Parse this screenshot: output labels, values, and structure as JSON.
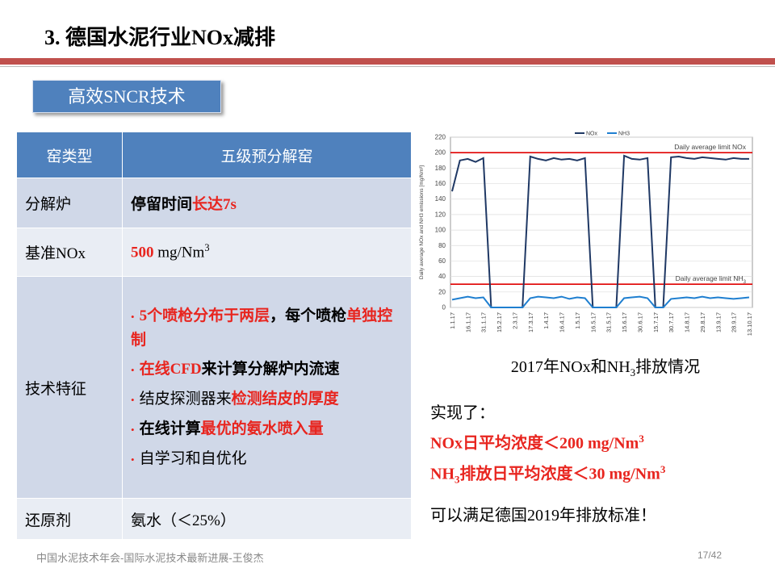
{
  "header": {
    "title": "3. 德国水泥行业NOx减排",
    "badge": "高效SNCR技术"
  },
  "table": {
    "header": [
      "窑类型",
      "五级预分解窑"
    ],
    "rows": [
      {
        "label": "分解炉",
        "content": [
          {
            "text": "停留时间",
            "bold": true
          },
          {
            "text": "长达7s",
            "bold": true,
            "color": "#e8251f"
          }
        ]
      },
      {
        "label": "基准NOx",
        "content": [
          {
            "text": "500",
            "bold": true,
            "color": "#e8251f"
          },
          {
            "text": " mg/Nm"
          },
          {
            "text": "3",
            "sup": true
          }
        ]
      },
      {
        "label": "技术特征",
        "bullets": [
          [
            {
              "text": "5个喷枪分布于两层",
              "bold": true,
              "color": "#e8251f"
            },
            {
              "text": "，每个喷枪",
              "bold": true
            },
            {
              "text": "单独控制",
              "bold": true,
              "color": "#e8251f"
            }
          ],
          [
            {
              "text": "在线CFD",
              "bold": true,
              "color": "#e8251f"
            },
            {
              "text": "来计算分解炉内流速",
              "bold": true
            }
          ],
          [
            {
              "text": "结皮探测器来"
            },
            {
              "text": "检测结皮的厚度",
              "bold": true,
              "color": "#e8251f"
            }
          ],
          [
            {
              "text": "在线计算",
              "bold": true
            },
            {
              "text": "最优的氨水喷入量",
              "bold": true,
              "color": "#e8251f"
            }
          ],
          [
            {
              "text": "自学习和自优化"
            }
          ]
        ]
      },
      {
        "label": "还原剂",
        "content": [
          {
            "text": "氨水（＜25%）"
          }
        ]
      }
    ]
  },
  "chart_data": {
    "type": "line",
    "ylabel": "Daily average NOx and NH3 emissions [mg/Nm³]",
    "categories": [
      "1.1.17",
      null,
      "16.1.17",
      null,
      "31.1.17",
      null,
      "15.2.17",
      null,
      "2.3.17",
      null,
      "17.3.17",
      null,
      "1.4.17",
      null,
      "16.4.17",
      null,
      "1.5.17",
      null,
      "16.5.17",
      null,
      "31.5.17",
      null,
      "15.6.17",
      null,
      "30.6.17",
      null,
      "15.7.17",
      null,
      "30.7.17",
      null,
      "14.8.17",
      null,
      "29.8.17",
      null,
      "13.9.17",
      null,
      "28.9.17",
      null,
      "13.10.17"
    ],
    "series": [
      {
        "name": "NOx",
        "color": "#1f3864",
        "values": [
          150,
          190,
          192,
          188,
          193,
          0,
          0,
          0,
          0,
          0,
          195,
          192,
          190,
          193,
          191,
          192,
          190,
          193,
          0,
          0,
          0,
          0,
          196,
          192,
          191,
          193,
          0,
          0,
          194,
          195,
          193,
          192,
          194,
          193,
          192,
          191,
          193,
          192,
          192
        ]
      },
      {
        "name": "NH3",
        "color": "#1f7fd0",
        "values": [
          10,
          12,
          14,
          12,
          13,
          0,
          0,
          0,
          0,
          0,
          12,
          14,
          13,
          12,
          14,
          11,
          13,
          12,
          0,
          0,
          0,
          0,
          12,
          13,
          14,
          12,
          0,
          0,
          11,
          12,
          13,
          12,
          14,
          12,
          13,
          12,
          11,
          12,
          13
        ]
      }
    ],
    "reference_lines": [
      {
        "value": 200,
        "color": "#e00000",
        "label": [
          {
            "text": "Daily average limit NOx"
          }
        ]
      },
      {
        "value": 30,
        "color": "#e00000",
        "label": [
          {
            "text": "Daily average limit NH"
          },
          {
            "text": "3",
            "sub": true
          }
        ]
      }
    ],
    "ylim": [
      0,
      220
    ],
    "yticks": [
      0,
      20,
      40,
      60,
      80,
      100,
      120,
      140,
      160,
      180,
      200,
      220
    ],
    "grid": true,
    "legend": "top",
    "caption": [
      {
        "text": "2017年NOx和NH"
      },
      {
        "text": "3",
        "sub": true
      },
      {
        "text": "排放情况"
      }
    ]
  },
  "summary": {
    "heading": "实现了：",
    "lines": [
      [
        {
          "text": "NOx日平均浓度＜200 mg/Nm",
          "bold": true,
          "color": "#e8251f"
        },
        {
          "text": "3",
          "sup": true,
          "bold": true,
          "color": "#e8251f"
        }
      ],
      [
        {
          "text": "NH",
          "bold": true,
          "color": "#e8251f"
        },
        {
          "text": "3",
          "sub": true,
          "bold": true,
          "color": "#e8251f"
        },
        {
          "text": "排放日平均浓度＜30 mg/Nm",
          "bold": true,
          "color": "#e8251f"
        },
        {
          "text": "3",
          "sup": true,
          "bold": true,
          "color": "#e8251f"
        }
      ]
    ],
    "conclusion": "可以满足德国2019年排放标准！"
  },
  "footer": {
    "left": "中国水泥技术年会-国际水泥技术最新进展-王俊杰",
    "page": "17/42"
  }
}
